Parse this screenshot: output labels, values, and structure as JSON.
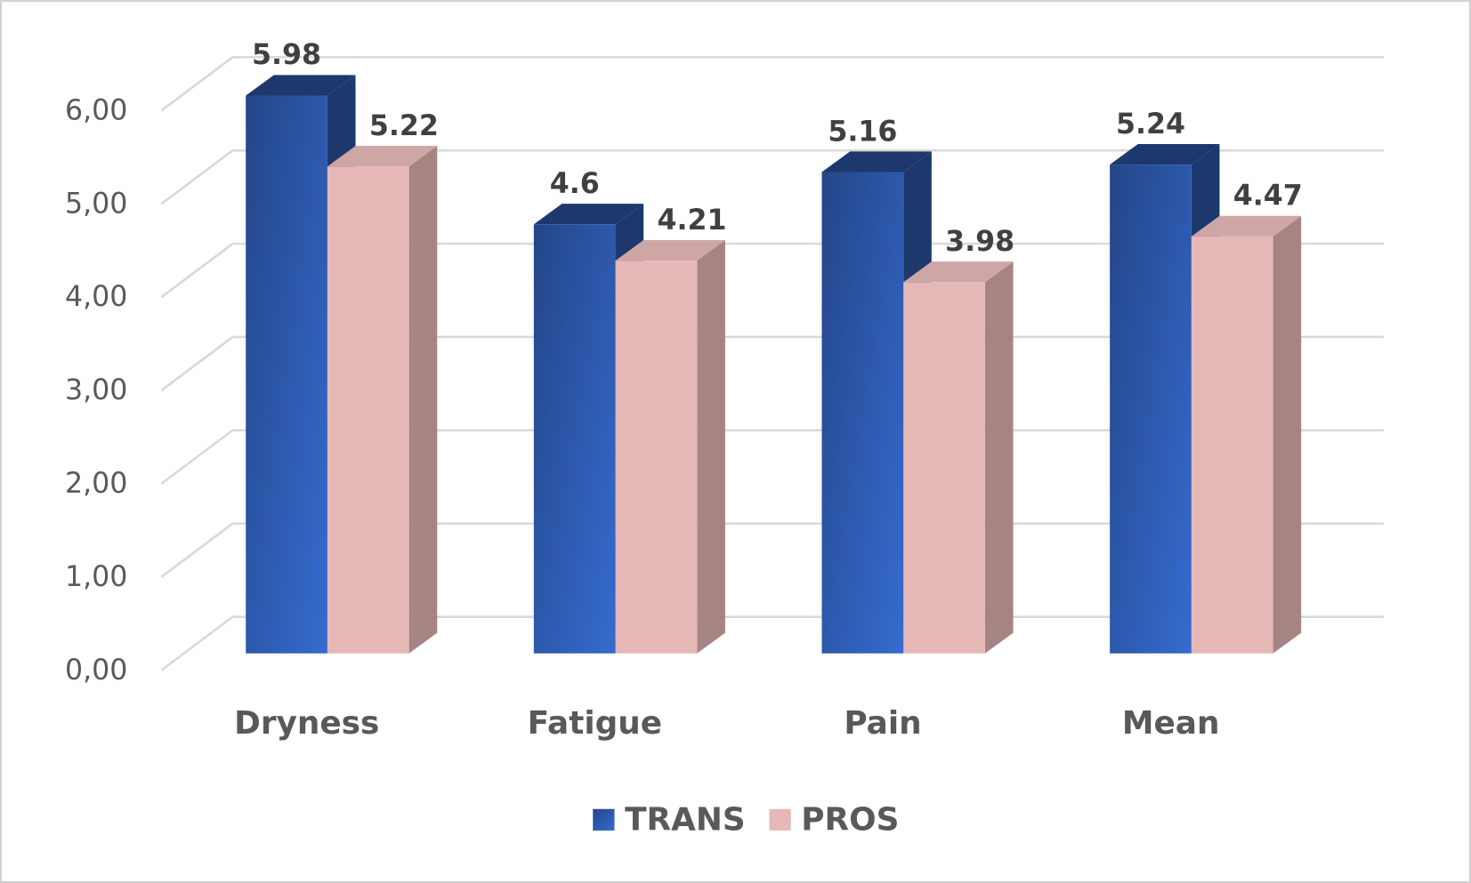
{
  "chart_data": {
    "type": "bar3d",
    "categories": [
      "Dryness",
      "Fatigue",
      "Pain",
      "Mean"
    ],
    "series": [
      {
        "name": "TRANS",
        "color": "#2f5db5",
        "values": [
          5.98,
          4.6,
          5.16,
          5.24
        ]
      },
      {
        "name": "PROS",
        "color": "#e6b8b8",
        "values": [
          5.22,
          4.21,
          3.98,
          4.47
        ]
      }
    ],
    "ylim": [
      0,
      6
    ],
    "yticks": [
      {
        "value": 0,
        "label": "0,00"
      },
      {
        "value": 1,
        "label": "1,00"
      },
      {
        "value": 2,
        "label": "2,00"
      },
      {
        "value": 3,
        "label": "3,00"
      },
      {
        "value": 4,
        "label": "4,00"
      },
      {
        "value": 5,
        "label": "5,00"
      },
      {
        "value": 6,
        "label": "6,00"
      }
    ],
    "grid": true,
    "legend": "bottom"
  }
}
